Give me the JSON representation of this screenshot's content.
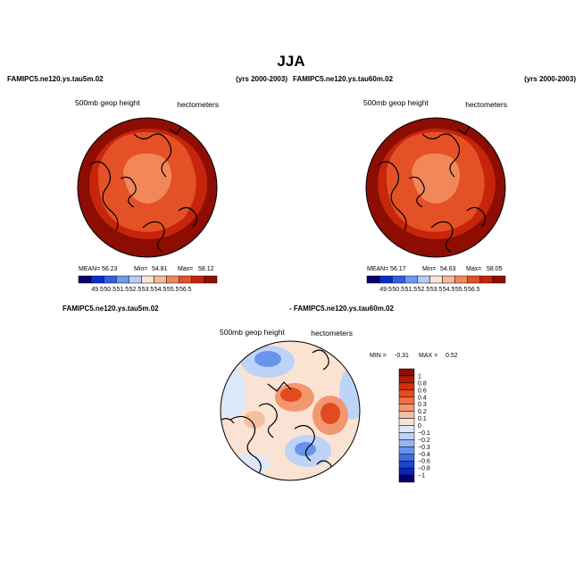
{
  "page": {
    "title": "JJA"
  },
  "chart_data": [
    {
      "type": "contour-map",
      "projection": "north-polar-stereographic",
      "left_title": "FAMIPC5.ne120.ys.tau5m.02",
      "right_title": "(yrs 2000-2003)",
      "variable": "500mb geop height",
      "units": "hectometers",
      "stats": {
        "mean_label": "MEAN=",
        "mean": "56.23",
        "min_label": "Min=",
        "min": "54.81",
        "max_label": "Max=",
        "max": "58.12"
      },
      "levels": [
        "49.5",
        "50.5",
        "51.5",
        "52.5",
        "53.5",
        "54.5",
        "55.5",
        "56.5"
      ],
      "colors": [
        "#08006e",
        "#0a2ccf",
        "#2f5fe6",
        "#6f9af1",
        "#b6cdf6",
        "#f9e2d6",
        "#f7b89a",
        "#f2875a",
        "#e55127",
        "#c6250b",
        "#8e0d03"
      ]
    },
    {
      "type": "contour-map",
      "projection": "north-polar-stereographic",
      "left_title": "FAMIPC5.ne120.ys.tau60m.02",
      "right_title": "(yrs 2000-2003)",
      "variable": "500mb geop height",
      "units": "hectometers",
      "stats": {
        "mean_label": "MEAN=",
        "mean": "56.17",
        "min_label": "Min=",
        "min": "54.63",
        "max_label": "Max=",
        "max": "58.05"
      },
      "levels": [
        "49.5",
        "50.5",
        "51.5",
        "52.5",
        "53.5",
        "54.5",
        "55.5",
        "56.5"
      ],
      "colors": [
        "#08006e",
        "#0a2ccf",
        "#2f5fe6",
        "#6f9af1",
        "#b6cdf6",
        "#f9e2d6",
        "#f7b89a",
        "#f2875a",
        "#e55127",
        "#c6250b",
        "#8e0d03"
      ]
    },
    {
      "type": "contour-map",
      "projection": "north-polar-stereographic",
      "left_title": "FAMIPC5.ne120.ys.tau5m.02",
      "right_title": "- FAMIPC5.ne120.ys.tau60m.02",
      "variable": "500mb geop height",
      "units": "hectometers",
      "stats": {
        "min_label": "MIN =",
        "min": "-0.31",
        "max_label": "MAX =",
        "max": "0.52"
      },
      "levels": [
        "1",
        "0.8",
        "0.6",
        "0.4",
        "0.3",
        "0.2",
        "0.1",
        "0",
        "−0.1",
        "−0.2",
        "−0.3",
        "−0.4",
        "−0.6",
        "−0.8",
        "−1"
      ],
      "colors": [
        "#8e0d03",
        "#b11a06",
        "#cf300e",
        "#e24b1f",
        "#ee7043",
        "#f39771",
        "#f7bfa1",
        "#fbe3d4",
        "#dde8fa",
        "#bed3f8",
        "#94b5f3",
        "#6a94ec",
        "#3f6ee3",
        "#1b45d4",
        "#0a22b8",
        "#08006e"
      ]
    }
  ]
}
